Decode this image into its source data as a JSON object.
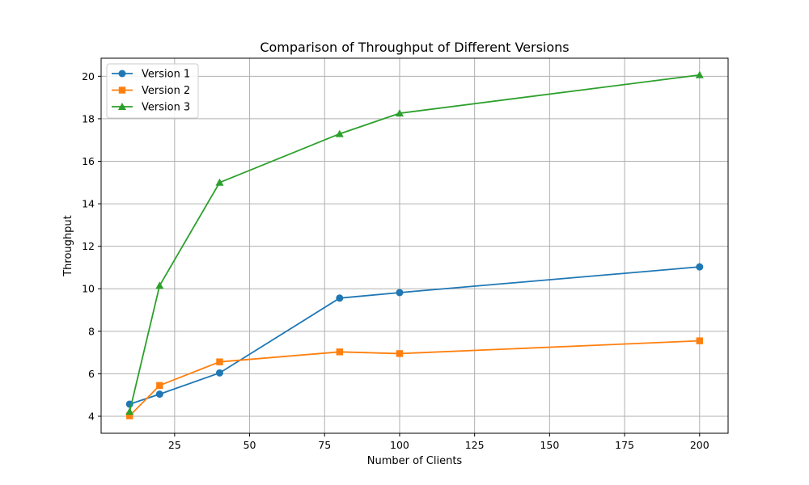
{
  "chart_data": {
    "type": "line",
    "title": "Comparison of Throughput of Different Versions",
    "xlabel": "Number of Clients",
    "ylabel": "Throughput",
    "x": [
      10,
      20,
      40,
      80,
      100,
      200
    ],
    "xlim": [
      0.5,
      209.5
    ],
    "ylim": [
      3.2,
      20.85
    ],
    "xticks": [
      25,
      50,
      75,
      100,
      125,
      150,
      175,
      200
    ],
    "yticks": [
      4,
      6,
      8,
      10,
      12,
      14,
      16,
      18,
      20
    ],
    "grid": true,
    "legend": "top-left",
    "series": [
      {
        "name": "Version 1",
        "color": "#1f77b4",
        "marker": "circle",
        "values": [
          4.57,
          5.04,
          6.04,
          9.56,
          9.82,
          11.03
        ]
      },
      {
        "name": "Version 2",
        "color": "#ff7f0e",
        "marker": "square",
        "values": [
          4.02,
          5.45,
          6.56,
          7.03,
          6.95,
          7.55
        ]
      },
      {
        "name": "Version 3",
        "color": "#2ca02c",
        "marker": "triangle",
        "values": [
          4.22,
          10.15,
          15.0,
          17.29,
          18.26,
          20.06
        ]
      }
    ]
  }
}
